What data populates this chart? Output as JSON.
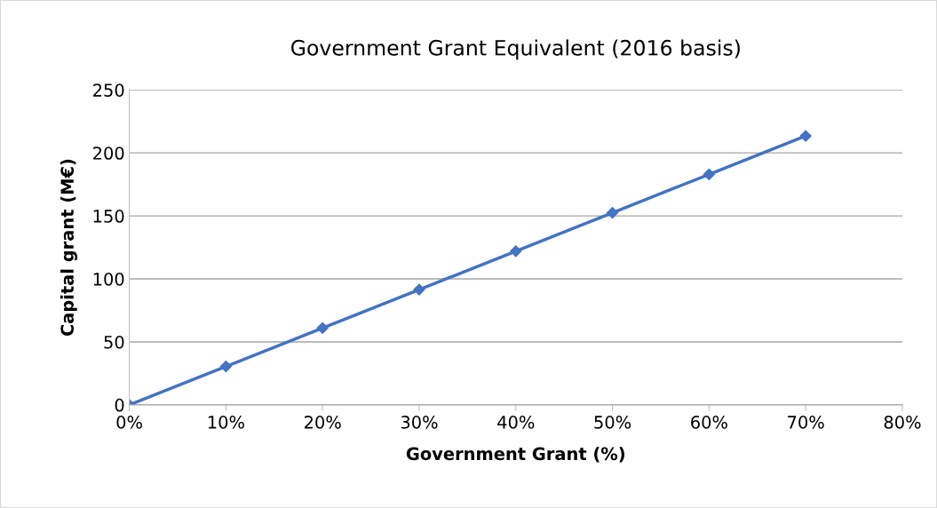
{
  "chart_data": {
    "type": "line",
    "title": "Government Grant Equivalent (2016 basis)",
    "xlabel": "Government Grant (%)",
    "ylabel": "Capital grant (M€)",
    "x": [
      0,
      10,
      20,
      30,
      40,
      50,
      60,
      70
    ],
    "series": [
      {
        "color": "#4472c4",
        "values": [
          0,
          30.5,
          61,
          91.5,
          122,
          152.5,
          183,
          213.5
        ]
      }
    ],
    "xlim": [
      0,
      80
    ],
    "xticks": [
      {
        "value": 0,
        "label": "0%"
      },
      {
        "value": 10,
        "label": "10%"
      },
      {
        "value": 20,
        "label": "20%"
      },
      {
        "value": 30,
        "label": "30%"
      },
      {
        "value": 40,
        "label": "40%"
      },
      {
        "value": 50,
        "label": "50%"
      },
      {
        "value": 60,
        "label": "60%"
      },
      {
        "value": 70,
        "label": "70%"
      },
      {
        "value": 80,
        "label": "80%"
      }
    ],
    "ylim": [
      0,
      250
    ],
    "yticks": [
      0,
      50,
      100,
      150,
      200,
      250
    ],
    "grid": "y",
    "marker": "diamond",
    "line_style": "solid",
    "legend": false
  }
}
